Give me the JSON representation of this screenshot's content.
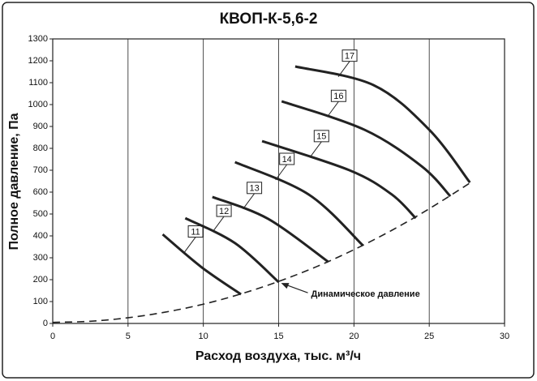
{
  "chart_data": {
    "type": "line",
    "title": "КВОП-К-5,6-2",
    "x_label": "Расход воздуха,  тыс. м³/ч",
    "y_label": "Полное давление, Па",
    "xlim": [
      0,
      30
    ],
    "xticks": [
      0,
      5,
      10,
      15,
      20,
      25,
      30
    ],
    "ylim": [
      0,
      1300
    ],
    "yticks": [
      0,
      100,
      200,
      300,
      400,
      500,
      600,
      700,
      800,
      900,
      1000,
      1100,
      1200,
      1300
    ],
    "grid": "x",
    "series": [
      {
        "name": "11",
        "color": "#222222",
        "x": [
          7.3,
          9.9,
          12.5
        ],
        "values": [
          407,
          256,
          133
        ]
      },
      {
        "name": "12",
        "color": "#222222",
        "x": [
          8.8,
          12.1,
          15.0
        ],
        "values": [
          481,
          367,
          189
        ]
      },
      {
        "name": "13",
        "color": "#222222",
        "x": [
          10.6,
          14.3,
          18.3
        ],
        "values": [
          578,
          478,
          281
        ]
      },
      {
        "name": "14",
        "color": "#222222",
        "x": [
          12.1,
          17.0,
          20.6
        ],
        "values": [
          737,
          589,
          356
        ]
      },
      {
        "name": "15",
        "color": "#222222",
        "x": [
          13.9,
          19.7,
          22.5,
          24.1
        ],
        "values": [
          833,
          700,
          590,
          481
        ]
      },
      {
        "name": "16",
        "color": "#222222",
        "x": [
          15.2,
          20.7,
          24.5,
          26.4
        ],
        "values": [
          1015,
          885,
          718,
          581
        ]
      },
      {
        "name": "17",
        "color": "#222222",
        "x": [
          16.1,
          21.3,
          25.0,
          27.7
        ],
        "values": [
          1174,
          1089,
          885,
          644
        ]
      },
      {
        "color": "#222222",
        "dashed": true,
        "x": [
          0,
          2.5,
          5,
          7.5,
          10,
          12.5,
          15,
          17.5,
          20,
          22.5,
          25,
          27.8
        ],
        "values": [
          5,
          10,
          26,
          52,
          88,
          135,
          192,
          259,
          337,
          425,
          524,
          646
        ]
      }
    ],
    "annotation": {
      "text": "Динамическое давление",
      "x": 15,
      "y": 192
    }
  }
}
